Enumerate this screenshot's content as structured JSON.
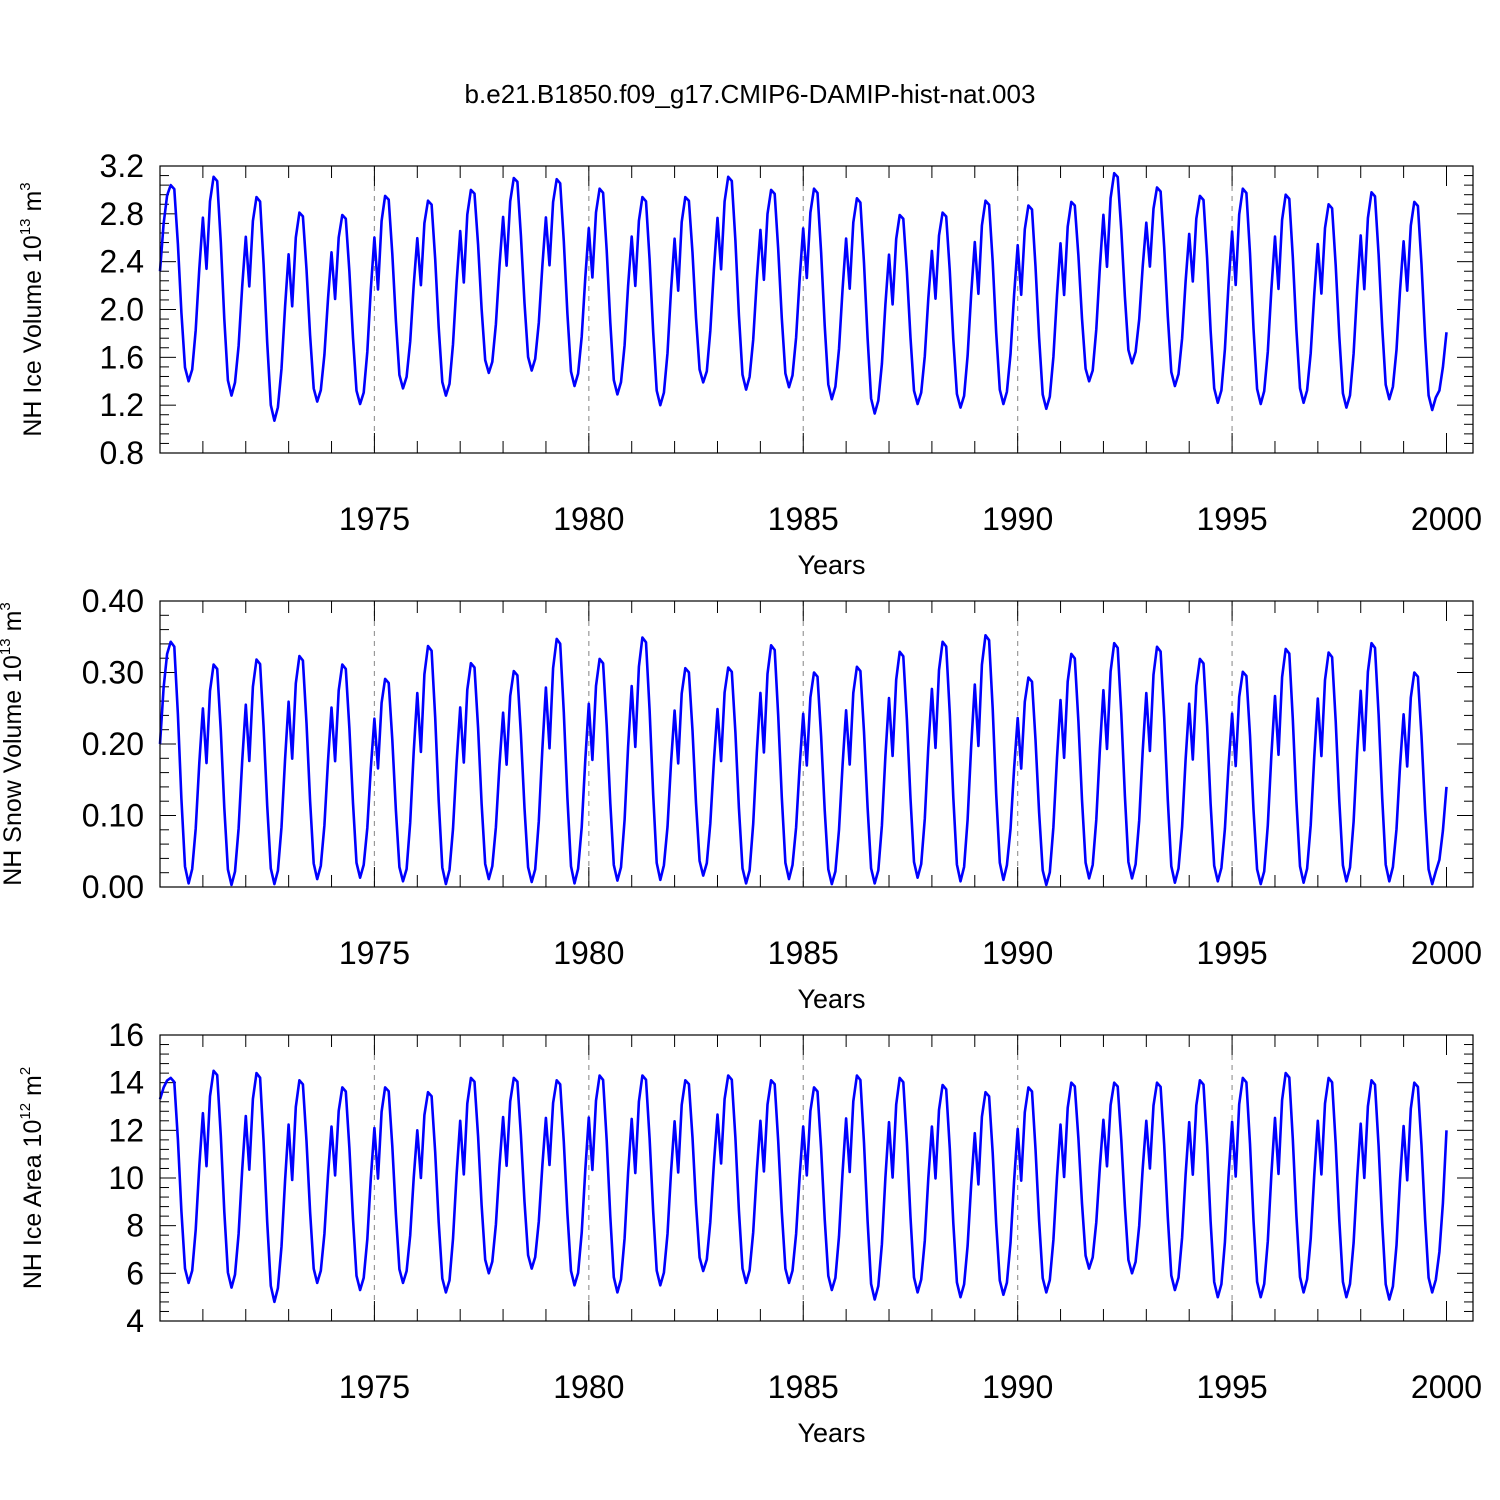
{
  "figure_title": "b.e21.B1850.f09_g17.CMIP6-DAMIP-hist-nat.003",
  "colors": {
    "line": "#0000ff",
    "grid": "#999999",
    "frame": "#000000"
  },
  "chart_data": [
    {
      "type": "line",
      "title": "",
      "xlabel": "Years",
      "ylabel": {
        "base": "NH Ice Volume 10",
        "exp": "13",
        "unit": " m",
        "unit_exp": "3"
      },
      "xlim": [
        1970,
        2000
      ],
      "ylim": [
        0.8,
        3.2
      ],
      "xticks": [
        1975,
        1980,
        1985,
        1990,
        1995,
        2000
      ],
      "xtick_labels": [
        "1975",
        "1980",
        "1985",
        "1990",
        "1995",
        "2000"
      ],
      "yticks": [
        0.8,
        1.2,
        1.6,
        2.0,
        2.4,
        2.8,
        3.2
      ],
      "ytick_labels": [
        "0.8",
        "1.2",
        "1.6",
        "2.0",
        "2.4",
        "2.8",
        "3.2"
      ],
      "grid": "vertical dashed at labeled years",
      "series": [
        {
          "name": "NH Ice Volume",
          "x_start": 1970.0,
          "x_step": 0.08333,
          "max": [
            3.04,
            3.11,
            2.94,
            2.81,
            2.79,
            2.95,
            2.91,
            3.0,
            3.1,
            3.09,
            3.01,
            2.94,
            2.94,
            3.11,
            3.0,
            3.01,
            2.93,
            2.79,
            2.81,
            2.91,
            2.87,
            2.9,
            3.14,
            3.02,
            2.95,
            3.01,
            2.96,
            2.88,
            2.98,
            2.9
          ],
          "min": [
            1.4,
            1.28,
            1.07,
            1.23,
            1.21,
            1.34,
            1.28,
            1.47,
            1.49,
            1.36,
            1.29,
            1.2,
            1.39,
            1.33,
            1.35,
            1.25,
            1.13,
            1.21,
            1.18,
            1.21,
            1.17,
            1.4,
            1.55,
            1.36,
            1.22,
            1.21,
            1.22,
            1.18,
            1.25,
            1.16
          ],
          "start_value": 2.32,
          "end_value": 1.81
        }
      ]
    },
    {
      "type": "line",
      "title": "",
      "xlabel": "Years",
      "ylabel": {
        "base": "NH Snow Volume 10",
        "exp": "13",
        "unit": " m",
        "unit_exp": "3"
      },
      "xlim": [
        1970,
        2000
      ],
      "ylim": [
        0.0,
        0.4
      ],
      "xticks": [
        1975,
        1980,
        1985,
        1990,
        1995,
        2000
      ],
      "xtick_labels": [
        "1975",
        "1980",
        "1985",
        "1990",
        "1995",
        "2000"
      ],
      "yticks": [
        0.0,
        0.1,
        0.2,
        0.3,
        0.4
      ],
      "ytick_labels": [
        "0.00",
        "0.10",
        "0.20",
        "0.30",
        "0.40"
      ],
      "grid": "vertical dashed at labeled years",
      "series": [
        {
          "name": "NH Snow Volume",
          "x_start": 1970.0,
          "x_step": 0.08333,
          "max": [
            0.343,
            0.311,
            0.318,
            0.323,
            0.311,
            0.291,
            0.337,
            0.313,
            0.302,
            0.347,
            0.319,
            0.349,
            0.306,
            0.307,
            0.338,
            0.3,
            0.308,
            0.329,
            0.343,
            0.352,
            0.293,
            0.326,
            0.341,
            0.336,
            0.319,
            0.301,
            0.333,
            0.328,
            0.341,
            0.3
          ],
          "min": [
            0.005,
            0.003,
            0.004,
            0.011,
            0.013,
            0.008,
            0.004,
            0.011,
            0.007,
            0.005,
            0.009,
            0.01,
            0.016,
            0.005,
            0.011,
            0.004,
            0.005,
            0.013,
            0.008,
            0.01,
            0.003,
            0.012,
            0.012,
            0.006,
            0.008,
            0.004,
            0.006,
            0.008,
            0.008,
            0.004
          ],
          "start_value": 0.2,
          "end_value": 0.14
        }
      ]
    },
    {
      "type": "line",
      "title": "",
      "xlabel": "Years",
      "ylabel": {
        "base": "NH Ice Area 10",
        "exp": "12",
        "unit": " m",
        "unit_exp": "2"
      },
      "xlim": [
        1970,
        2000
      ],
      "ylim": [
        4,
        16
      ],
      "xticks": [
        1975,
        1980,
        1985,
        1990,
        1995,
        2000
      ],
      "xtick_labels": [
        "1975",
        "1980",
        "1985",
        "1990",
        "1995",
        "2000"
      ],
      "yticks": [
        4,
        6,
        8,
        10,
        12,
        14,
        16
      ],
      "ytick_labels": [
        "4",
        "6",
        "8",
        "10",
        "12",
        "14",
        "16"
      ],
      "grid": "vertical dashed at labeled years",
      "series": [
        {
          "name": "NH Ice Area",
          "x_start": 1970.0,
          "x_step": 0.08333,
          "max": [
            14.2,
            14.5,
            14.4,
            14.1,
            13.8,
            13.8,
            13.6,
            14.2,
            14.2,
            14.1,
            14.3,
            14.3,
            14.1,
            14.3,
            14.1,
            13.8,
            14.3,
            14.2,
            13.9,
            13.6,
            13.8,
            14.0,
            14.0,
            14.0,
            14.1,
            14.2,
            14.4,
            14.2,
            14.1,
            14.0
          ],
          "min": [
            5.6,
            5.4,
            4.8,
            5.6,
            5.3,
            5.6,
            5.2,
            6.0,
            6.2,
            5.5,
            5.2,
            5.5,
            6.1,
            5.6,
            5.6,
            5.3,
            4.9,
            5.2,
            5.0,
            5.1,
            5.2,
            6.2,
            6.0,
            5.3,
            5.0,
            5.0,
            5.2,
            5.0,
            4.9,
            5.2
          ],
          "start_value": 13.3,
          "end_value": 12.0
        }
      ]
    }
  ]
}
